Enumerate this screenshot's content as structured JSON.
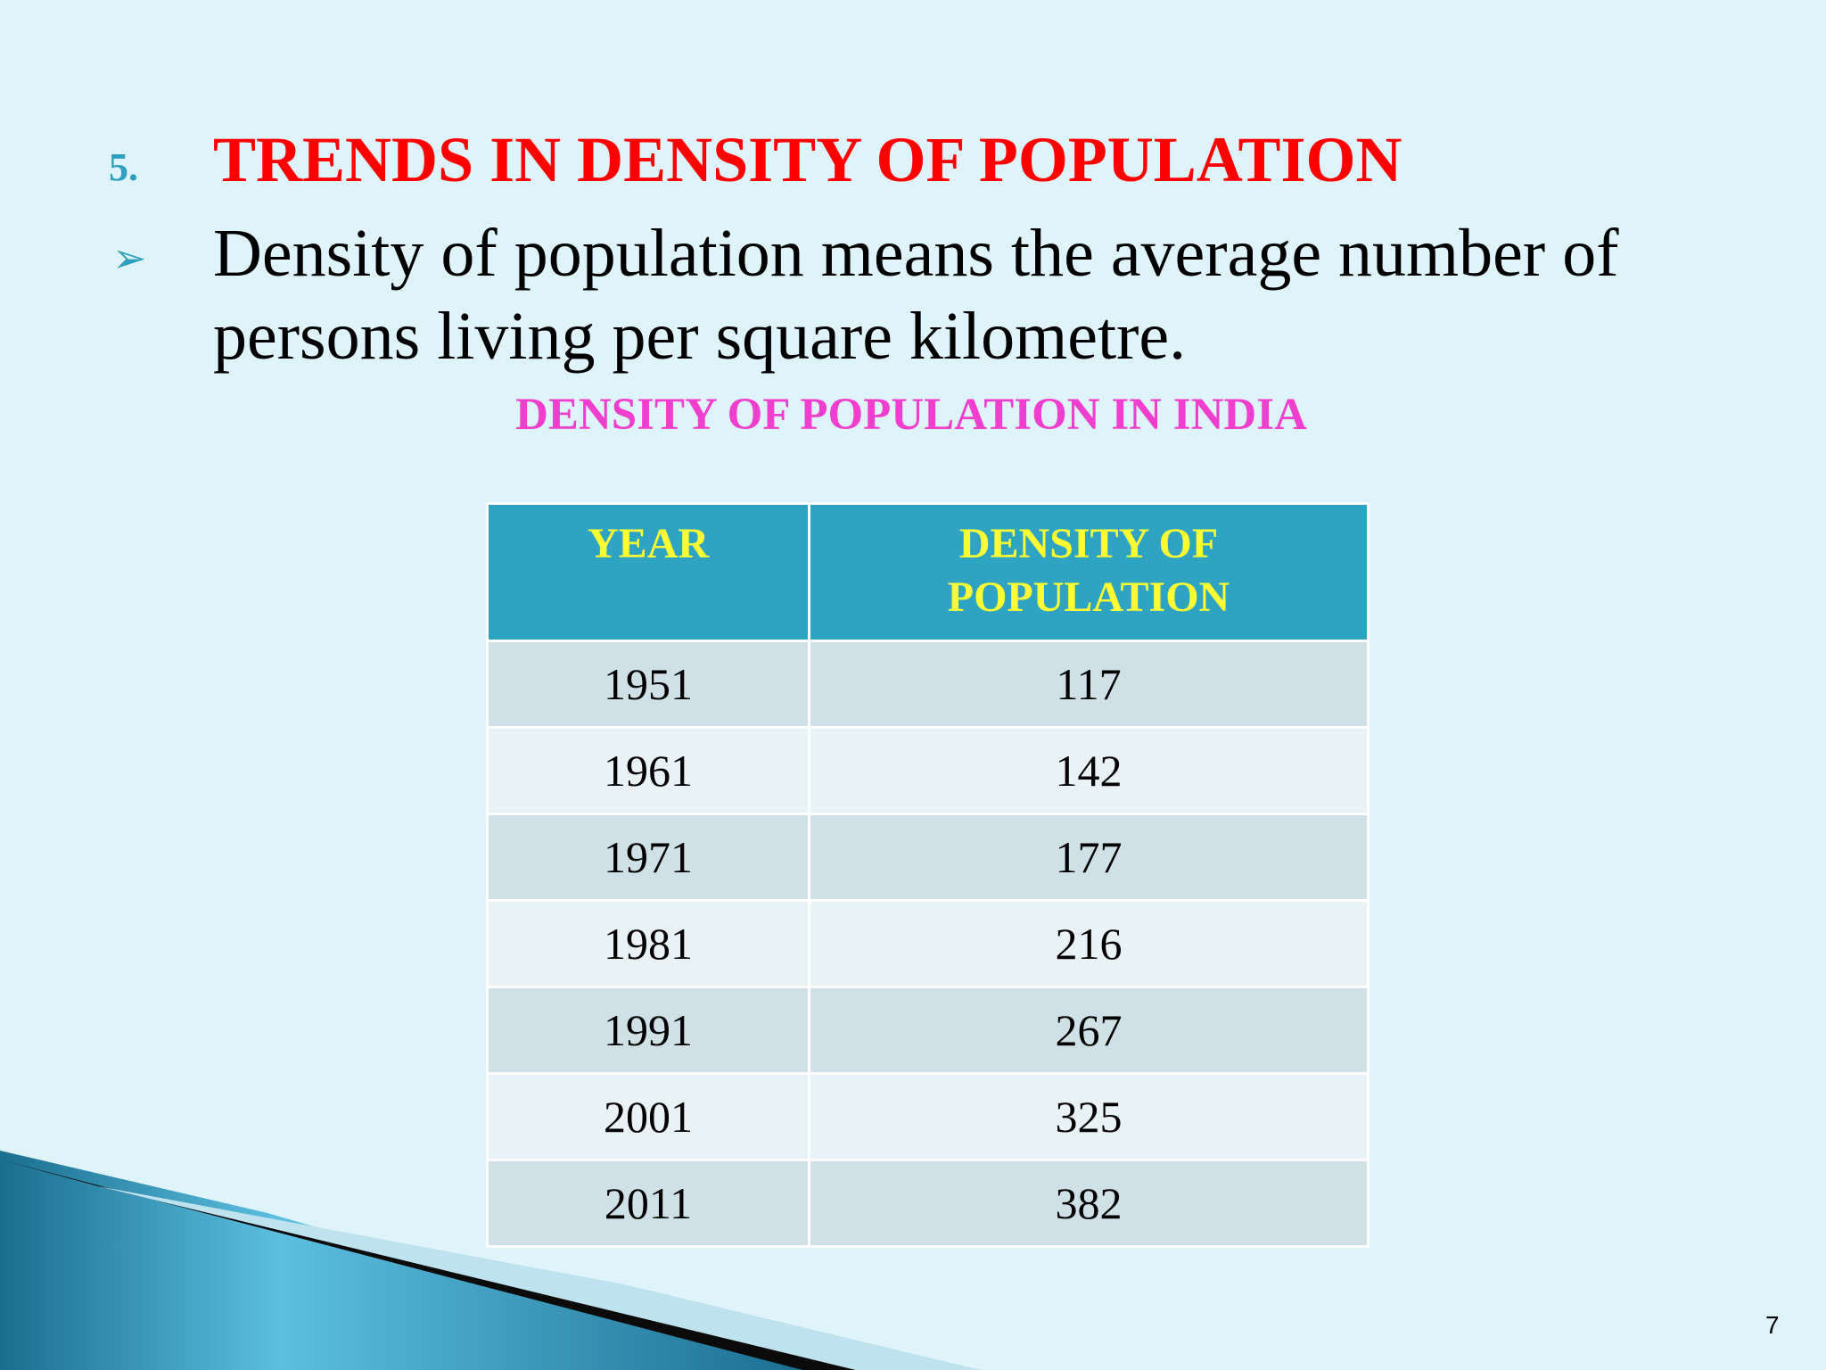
{
  "heading": {
    "number": "5.",
    "title": "TRENDS IN DENSITY OF POPULATION"
  },
  "bullet": "Density of population means the average number of persons living per square kilometre.",
  "table": {
    "caption": "DENSITY OF POPULATION IN INDIA",
    "header": [
      "YEAR",
      "DENSITY OF POPULATION"
    ],
    "rows": [
      [
        "1951",
        "117"
      ],
      [
        "1961",
        "142"
      ],
      [
        "1971",
        "177"
      ],
      [
        "1981",
        "216"
      ],
      [
        "1991",
        "267"
      ],
      [
        "2001",
        "325"
      ],
      [
        "2011",
        "382"
      ]
    ]
  },
  "page_number": "7"
}
